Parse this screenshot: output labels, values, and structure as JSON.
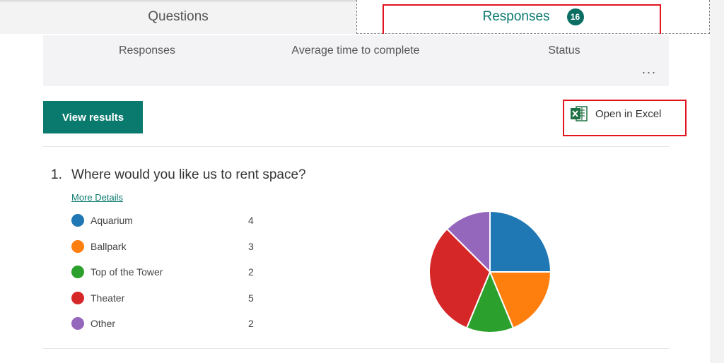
{
  "tabs": {
    "questions_label": "Questions",
    "responses_label": "Responses",
    "responses_count": "16"
  },
  "summary": {
    "columns": [
      "Responses",
      "Average time to complete",
      "Status"
    ],
    "more_label": "..."
  },
  "actions": {
    "view_results_label": "View results",
    "open_excel_label": "Open in Excel"
  },
  "question": {
    "number": "1.",
    "text": "Where would you like us to rent space?",
    "more_details_label": "More Details",
    "options": [
      {
        "label": "Aquarium",
        "count": "4",
        "color": "#1f77b4"
      },
      {
        "label": "Ballpark",
        "count": "3",
        "color": "#ff7f0e"
      },
      {
        "label": "Top of the Tower",
        "count": "2",
        "color": "#2ca02c"
      },
      {
        "label": "Theater",
        "count": "5",
        "color": "#d62728"
      },
      {
        "label": "Other",
        "count": "2",
        "color": "#9467bd"
      }
    ]
  },
  "colors": {
    "accent": "#0b7a6e",
    "highlight_box": "#e2151f"
  }
}
